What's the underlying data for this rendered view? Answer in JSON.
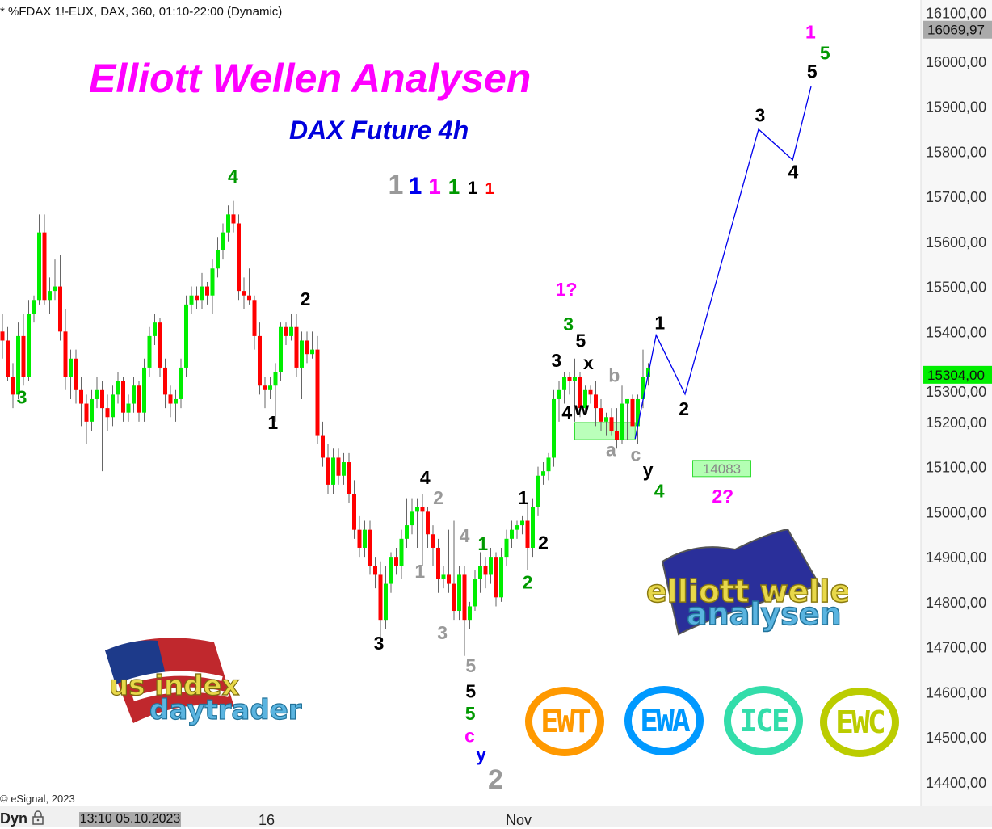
{
  "header": {
    "symbol_line": "* %FDAX 1!-EUX, DAX, 360, 01:10-22:00 (Dynamic)",
    "copyright": "© eSignal, 2023"
  },
  "overlay": {
    "title": "Elliott Wellen Analysen",
    "subtitle": "DAX Future 4h"
  },
  "footer": {
    "mode": "Dyn",
    "lock_icon": "padlock-icon",
    "cursor_date": "13:10 05.10.2023",
    "x_labels": [
      "16",
      "Nov"
    ]
  },
  "logos": {
    "ewa_logo_text": "elliott wellen analysen",
    "us_logo_text": "us index daytrader",
    "badges": [
      {
        "text": "EWT",
        "color": "#ff9900"
      },
      {
        "text": "EWA",
        "color": "#0099ff"
      },
      {
        "text": "ICE",
        "color": "#33ddaa"
      },
      {
        "text": "EWC",
        "color": "#bbcc00"
      }
    ]
  },
  "chart_data": {
    "type": "candlestick",
    "ylim": [
      14350,
      16130
    ],
    "yticks": [
      16100,
      16000,
      15900,
      15800,
      15700,
      15600,
      15500,
      15400,
      15300,
      15200,
      15100,
      15000,
      14900,
      14800,
      14700,
      14600,
      14500,
      14400
    ],
    "ytick_labels": [
      "16100,00",
      "16000,00",
      "15900,00",
      "15800,00",
      "15700,00",
      "15600,00",
      "15500,00",
      "15400,00",
      "15300,00",
      "15200,00",
      "15100,00",
      "15000,00",
      "14900,00",
      "14800,00",
      "14700,00",
      "14600,00",
      "14500,00",
      "14400,00"
    ],
    "price_markers": [
      {
        "label": "16069,97",
        "value": 16069.97,
        "color": "#aaaaaa"
      },
      {
        "label": "15304,00",
        "value": 15304,
        "color": "#00ee00"
      }
    ],
    "colors": {
      "up": "#00ee00",
      "down": "#ff0000",
      "wick": "#666666",
      "projection": "#0000ee"
    },
    "candles": [
      [
        15400,
        15440,
        15340,
        15380
      ],
      [
        15380,
        15410,
        15290,
        15300
      ],
      [
        15300,
        15330,
        15230,
        15260
      ],
      [
        15260,
        15420,
        15250,
        15390
      ],
      [
        15390,
        15440,
        15280,
        15300
      ],
      [
        15300,
        15470,
        15290,
        15440
      ],
      [
        15440,
        15480,
        15420,
        15470
      ],
      [
        15470,
        15660,
        15460,
        15620
      ],
      [
        15620,
        15660,
        15460,
        15470
      ],
      [
        15470,
        15520,
        15440,
        15490
      ],
      [
        15490,
        15560,
        15470,
        15500
      ],
      [
        15500,
        15570,
        15380,
        15400
      ],
      [
        15400,
        15450,
        15270,
        15300
      ],
      [
        15300,
        15360,
        15250,
        15340
      ],
      [
        15340,
        15360,
        15240,
        15270
      ],
      [
        15270,
        15300,
        15190,
        15240
      ],
      [
        15240,
        15260,
        15150,
        15200
      ],
      [
        15200,
        15270,
        15180,
        15250
      ],
      [
        15250,
        15300,
        15230,
        15270
      ],
      [
        15270,
        15290,
        15090,
        15230
      ],
      [
        15230,
        15260,
        15180,
        15210
      ],
      [
        15210,
        15280,
        15190,
        15260
      ],
      [
        15260,
        15310,
        15240,
        15290
      ],
      [
        15290,
        15300,
        15200,
        15220
      ],
      [
        15220,
        15260,
        15200,
        15240
      ],
      [
        15240,
        15300,
        15220,
        15280
      ],
      [
        15280,
        15290,
        15200,
        15220
      ],
      [
        15220,
        15340,
        15200,
        15320
      ],
      [
        15320,
        15410,
        15300,
        15390
      ],
      [
        15390,
        15440,
        15370,
        15420
      ],
      [
        15420,
        15430,
        15300,
        15320
      ],
      [
        15320,
        15340,
        15230,
        15260
      ],
      [
        15260,
        15280,
        15210,
        15240
      ],
      [
        15240,
        15270,
        15200,
        15250
      ],
      [
        15250,
        15340,
        15230,
        15320
      ],
      [
        15320,
        15480,
        15300,
        15460
      ],
      [
        15460,
        15500,
        15440,
        15480
      ],
      [
        15480,
        15500,
        15450,
        15470
      ],
      [
        15470,
        15530,
        15450,
        15500
      ],
      [
        15500,
        15510,
        15460,
        15480
      ],
      [
        15480,
        15560,
        15440,
        15540
      ],
      [
        15540,
        15610,
        15520,
        15580
      ],
      [
        15580,
        15640,
        15560,
        15620
      ],
      [
        15620,
        15680,
        15600,
        15660
      ],
      [
        15660,
        15690,
        15620,
        15640
      ],
      [
        15640,
        15660,
        15470,
        15490
      ],
      [
        15490,
        15520,
        15450,
        15480
      ],
      [
        15480,
        15540,
        15460,
        15470
      ],
      [
        15470,
        15480,
        15360,
        15390
      ],
      [
        15390,
        15420,
        15260,
        15280
      ],
      [
        15280,
        15300,
        15230,
        15270
      ],
      [
        15270,
        15300,
        15250,
        15280
      ],
      [
        15280,
        15330,
        15200,
        15310
      ],
      [
        15310,
        15420,
        15290,
        15410
      ],
      [
        15410,
        15420,
        15370,
        15390
      ],
      [
        15390,
        15440,
        15380,
        15410
      ],
      [
        15410,
        15440,
        15300,
        15320
      ],
      [
        15320,
        15400,
        15250,
        15380
      ],
      [
        15380,
        15400,
        15330,
        15350
      ],
      [
        15350,
        15400,
        15340,
        15360
      ],
      [
        15360,
        15390,
        15150,
        15170
      ],
      [
        15170,
        15200,
        15100,
        15120
      ],
      [
        15120,
        15150,
        15040,
        15060
      ],
      [
        15060,
        15140,
        15040,
        15120
      ],
      [
        15120,
        15140,
        15060,
        15080
      ],
      [
        15080,
        15130,
        15060,
        15110
      ],
      [
        15110,
        15130,
        15020,
        15040
      ],
      [
        15040,
        15070,
        14940,
        14960
      ],
      [
        14960,
        14990,
        14900,
        14920
      ],
      [
        14920,
        14980,
        14900,
        14960
      ],
      [
        14960,
        14980,
        14860,
        14880
      ],
      [
        14880,
        14900,
        14830,
        14860
      ],
      [
        14860,
        14890,
        14720,
        14760
      ],
      [
        14760,
        14880,
        14740,
        14840
      ],
      [
        14840,
        14910,
        14820,
        14900
      ],
      [
        14900,
        14920,
        14860,
        14880
      ],
      [
        14880,
        14960,
        14850,
        14940
      ],
      [
        14940,
        15030,
        14920,
        14970
      ],
      [
        14970,
        15030,
        14950,
        15000
      ],
      [
        15000,
        15030,
        14920,
        15010
      ],
      [
        15010,
        15040,
        14880,
        15000
      ],
      [
        15000,
        15010,
        14920,
        14950
      ],
      [
        14950,
        14970,
        14880,
        14920
      ],
      [
        14920,
        14940,
        14820,
        14850
      ],
      [
        14850,
        14880,
        14830,
        14860
      ],
      [
        14860,
        14960,
        14820,
        14840
      ],
      [
        14840,
        14980,
        14760,
        14780
      ],
      [
        14780,
        14880,
        14760,
        14860
      ],
      [
        14860,
        14880,
        14680,
        14760
      ],
      [
        14760,
        14800,
        14740,
        14790
      ],
      [
        14790,
        14870,
        14780,
        14850
      ],
      [
        14850,
        14910,
        14820,
        14880
      ],
      [
        14880,
        14900,
        14830,
        14860
      ],
      [
        14860,
        14920,
        14840,
        14900
      ],
      [
        14900,
        14910,
        14790,
        14810
      ],
      [
        14810,
        14920,
        14800,
        14900
      ],
      [
        14900,
        14960,
        14880,
        14940
      ],
      [
        14940,
        14980,
        14920,
        14960
      ],
      [
        14960,
        14980,
        14940,
        14970
      ],
      [
        14970,
        14990,
        14950,
        14980
      ],
      [
        14980,
        15020,
        14870,
        14920
      ],
      [
        14920,
        15030,
        14900,
        15010
      ],
      [
        15010,
        15100,
        14990,
        15080
      ],
      [
        15080,
        15110,
        15060,
        15090
      ],
      [
        15090,
        15130,
        15070,
        15120
      ],
      [
        15120,
        15270,
        15100,
        15250
      ],
      [
        15250,
        15290,
        15200,
        15270
      ],
      [
        15270,
        15310,
        15240,
        15300
      ],
      [
        15300,
        15310,
        15260,
        15290
      ],
      [
        15290,
        15340,
        15200,
        15300
      ],
      [
        15300,
        15310,
        15210,
        15230
      ],
      [
        15230,
        15280,
        15220,
        15270
      ],
      [
        15270,
        15280,
        15240,
        15260
      ],
      [
        15260,
        15290,
        15190,
        15230
      ],
      [
        15230,
        15250,
        15180,
        15200
      ],
      [
        15200,
        15220,
        15170,
        15210
      ],
      [
        15210,
        15230,
        15170,
        15180
      ],
      [
        15180,
        15230,
        15140,
        15160
      ],
      [
        15160,
        15280,
        15150,
        15240
      ],
      [
        15240,
        15250,
        15160,
        15250
      ],
      [
        15250,
        15260,
        15190,
        15190
      ],
      [
        15190,
        15260,
        15150,
        15250
      ],
      [
        15250,
        15360,
        15230,
        15300
      ],
      [
        15300,
        15330,
        15280,
        15320
      ]
    ],
    "support_zone": {
      "from_index": 109,
      "to_index": 120.5,
      "low": 15160,
      "high": 15198,
      "color": "#b3ffb3"
    },
    "projection": [
      {
        "index": 120.5,
        "price": 15162
      },
      {
        "index": 124.5,
        "price": 15392
      },
      {
        "index": 130,
        "price": 15261
      },
      {
        "index": 144,
        "price": 15849
      },
      {
        "index": 150.5,
        "price": 15781
      },
      {
        "index": 154,
        "price": 15944
      }
    ],
    "wave_labels": [
      {
        "text": "3",
        "index": 3.7,
        "price": 15254,
        "color": "#009900"
      },
      {
        "text": "4",
        "index": 43.9,
        "price": 15745,
        "color": "#009900"
      },
      {
        "text": "2",
        "index": 57.7,
        "price": 15472,
        "color": "#000000"
      },
      {
        "text": "1",
        "index": 51.5,
        "price": 15198,
        "color": "#000000"
      },
      {
        "text": "3",
        "index": 71.7,
        "price": 14708,
        "color": "#000000"
      },
      {
        "text": "4",
        "index": 80.5,
        "price": 15076,
        "color": "#000000"
      },
      {
        "text": "2",
        "index": 83,
        "price": 15031,
        "color": "#999999"
      },
      {
        "text": "1",
        "index": 79.5,
        "price": 14868,
        "color": "#999999"
      },
      {
        "text": "3",
        "index": 83.8,
        "price": 14732,
        "color": "#999999"
      },
      {
        "text": "4",
        "index": 88,
        "price": 14947,
        "color": "#999999"
      },
      {
        "text": "1",
        "index": 91.5,
        "price": 14929,
        "color": "#009900"
      },
      {
        "text": "5",
        "index": 89.2,
        "price": 14658,
        "color": "#999999"
      },
      {
        "text": "5",
        "index": 89.2,
        "price": 14602,
        "color": "#000000"
      },
      {
        "text": "5",
        "index": 89.1,
        "price": 14552,
        "color": "#009900"
      },
      {
        "text": "c",
        "index": 89,
        "price": 14503,
        "color": "#ff00ff"
      },
      {
        "text": "y",
        "index": 89,
        "price": 14462,
        "color": "#0000ee"
      },
      {
        "text": "2",
        "index": 89,
        "price": 14400,
        "color": "#999999",
        "big": true
      },
      {
        "text": "1",
        "index": 99.2,
        "price": 15031,
        "color": "#000000"
      },
      {
        "text": "2",
        "index": 103,
        "price": 14932,
        "color": "#000000"
      },
      {
        "text": "2",
        "index": 100,
        "price": 14844,
        "color": "#009900"
      },
      {
        "text": "3",
        "index": 105.5,
        "price": 15336,
        "color": "#000000"
      },
      {
        "text": "3",
        "index": 107.8,
        "price": 15417,
        "color": "#009900"
      },
      {
        "text": "5",
        "index": 108.3,
        "price": 15380,
        "color": "#000000"
      },
      {
        "text": "1?",
        "index": 107.4,
        "price": 15494,
        "color": "#ff00ff"
      },
      {
        "text": "x",
        "index": 111.6,
        "price": 15331,
        "color": "#000000"
      },
      {
        "text": "4",
        "index": 107.5,
        "price": 15220,
        "color": "#000000"
      },
      {
        "text": "w",
        "index": 109.7,
        "price": 15228,
        "color": "#000000"
      },
      {
        "text": "b",
        "index": 116.5,
        "price": 15303,
        "color": "#999999"
      },
      {
        "text": "a",
        "index": 115.9,
        "price": 15138,
        "color": "#999999"
      },
      {
        "text": "c",
        "index": 120.6,
        "price": 15127,
        "color": "#999999"
      },
      {
        "text": "y",
        "index": 121.1,
        "price": 15093,
        "color": "#000000"
      },
      {
        "text": "4",
        "index": 121.1,
        "price": 15046,
        "color": "#009900"
      },
      {
        "text": "1",
        "index": 125.2,
        "price": 15419,
        "color": "#000000"
      },
      {
        "text": "2",
        "index": 129.8,
        "price": 15228,
        "color": "#000000"
      },
      {
        "text": "3",
        "index": 144.3,
        "price": 15880,
        "color": "#000000"
      },
      {
        "text": "4",
        "index": 150.6,
        "price": 15755,
        "color": "#000000"
      },
      {
        "text": "5",
        "index": 154.2,
        "price": 15977,
        "color": "#000000"
      },
      {
        "text": "5",
        "index": 154.2,
        "price": 16018,
        "color": "#009900"
      },
      {
        "text": "1",
        "index": 153.9,
        "price": 16065,
        "color": "#ff00ff"
      },
      {
        "text": "2?",
        "index": 137.2,
        "price": 15035,
        "color": "#ff00ff"
      }
    ],
    "degree_legend": [
      {
        "text": "1",
        "color": "#999999"
      },
      {
        "text": "1",
        "color": "#0000ee"
      },
      {
        "text": "1",
        "color": "#ff00ff"
      },
      {
        "text": "1",
        "color": "#009900"
      },
      {
        "text": "1",
        "color": "#000000"
      },
      {
        "text": "1",
        "color": "#ff0000"
      }
    ],
    "target_box": {
      "label": "14083",
      "index": 137,
      "price": 15096
    }
  }
}
